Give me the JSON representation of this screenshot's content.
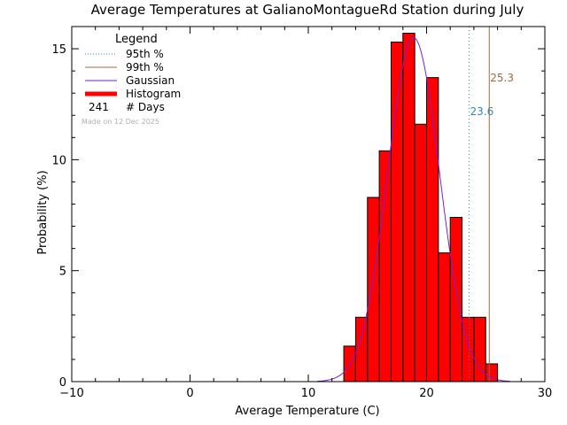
{
  "chart_data": {
    "type": "bar",
    "title": "Average Temperatures at GalianoMontagueRd Station during July",
    "xlabel": "Average Temperature (C)",
    "ylabel": "Probability (%)",
    "xlim": [
      -10,
      30
    ],
    "ylim": [
      0,
      16
    ],
    "x_ticks": [
      -10,
      0,
      10,
      20,
      30
    ],
    "y_ticks": [
      0,
      5,
      10,
      15
    ],
    "bin_edges": [
      13,
      14,
      15,
      16,
      17,
      18,
      19,
      20,
      21,
      22,
      23,
      24,
      25,
      26
    ],
    "values": [
      1.6,
      2.9,
      8.3,
      10.4,
      15.3,
      15.7,
      11.6,
      13.7,
      5.8,
      7.4,
      2.9,
      2.9,
      0.8
    ],
    "gaussian": {
      "mean": 18.9,
      "sd": 2.2,
      "peak": 15.5
    },
    "percentiles": [
      {
        "label": "95th %",
        "value": 23.6,
        "text": "23.6",
        "color": "#2a88c8",
        "style": "dotted"
      },
      {
        "label": "99th %",
        "value": 25.3,
        "text": "25.3",
        "color": "#a0693a",
        "style": "solid"
      }
    ],
    "legend": {
      "title": "Legend",
      "position": "top-left",
      "entries": [
        "95th %",
        "99th %",
        "Gaussian",
        "Histogram"
      ],
      "days_count": "241",
      "days_label": "# Days"
    },
    "note": "Made on 12 Dec 2025",
    "colors": {
      "histogram": "#ff0000",
      "gaussian": "#7a1fd6",
      "p95": "#2a88c8",
      "p99": "#a0693a"
    }
  }
}
